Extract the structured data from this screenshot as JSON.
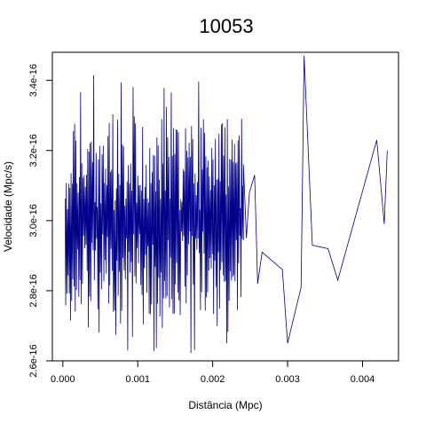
{
  "chart_data": {
    "type": "line",
    "title": "10053",
    "title_color": "#6a2c91",
    "line_color": "#00008b",
    "xlabel": "Distância (Mpc)",
    "ylabel": "Velocidade (Mpc/s)",
    "xlim": [
      -0.00014,
      0.00448
    ],
    "ylim": [
      2.6e-16,
      3.48e-16
    ],
    "x_ticks": [
      {
        "value": 0.0,
        "label": "0.000"
      },
      {
        "value": 0.001,
        "label": "0.001"
      },
      {
        "value": 0.002,
        "label": "0.002"
      },
      {
        "value": 0.003,
        "label": "0.003"
      },
      {
        "value": 0.004,
        "label": "0.004"
      }
    ],
    "y_ticks": [
      {
        "value": 2.6e-16,
        "label": "2.6e-16"
      },
      {
        "value": 2.8e-16,
        "label": "2.8e-16"
      },
      {
        "value": 3e-16,
        "label": "3.0e-16"
      },
      {
        "value": 3.2e-16,
        "label": "3.2e-16"
      },
      {
        "value": 3.4e-16,
        "label": "3.4e-16"
      }
    ],
    "dense_region": {
      "x_range": [
        3e-05,
        0.00241
      ],
      "points": 300,
      "y_min": 2.62e-16,
      "y_max": 3.43e-16,
      "typical_low": 2.73e-16,
      "typical_high": 3.3e-16
    },
    "series": [
      {
        "points": [
          [
            0.00241,
            3.16e-16
          ],
          [
            0.00245,
            2.95e-16
          ],
          [
            0.00249,
            3.08e-16
          ],
          [
            0.00256,
            3.13e-16
          ],
          [
            0.0026,
            2.82e-16
          ],
          [
            0.00266,
            2.91e-16
          ],
          [
            0.00293,
            2.86e-16
          ],
          [
            0.003,
            2.65e-16
          ],
          [
            0.00318,
            2.81e-16
          ],
          [
            0.00322,
            3.47e-16
          ],
          [
            0.00333,
            2.93e-16
          ],
          [
            0.00354,
            2.92e-16
          ],
          [
            0.00367,
            2.83e-16
          ],
          [
            0.00419,
            3.23e-16
          ],
          [
            0.00429,
            2.99e-16
          ],
          [
            0.00433,
            3.2e-16
          ]
        ]
      }
    ],
    "grid": false,
    "legend": "none"
  }
}
